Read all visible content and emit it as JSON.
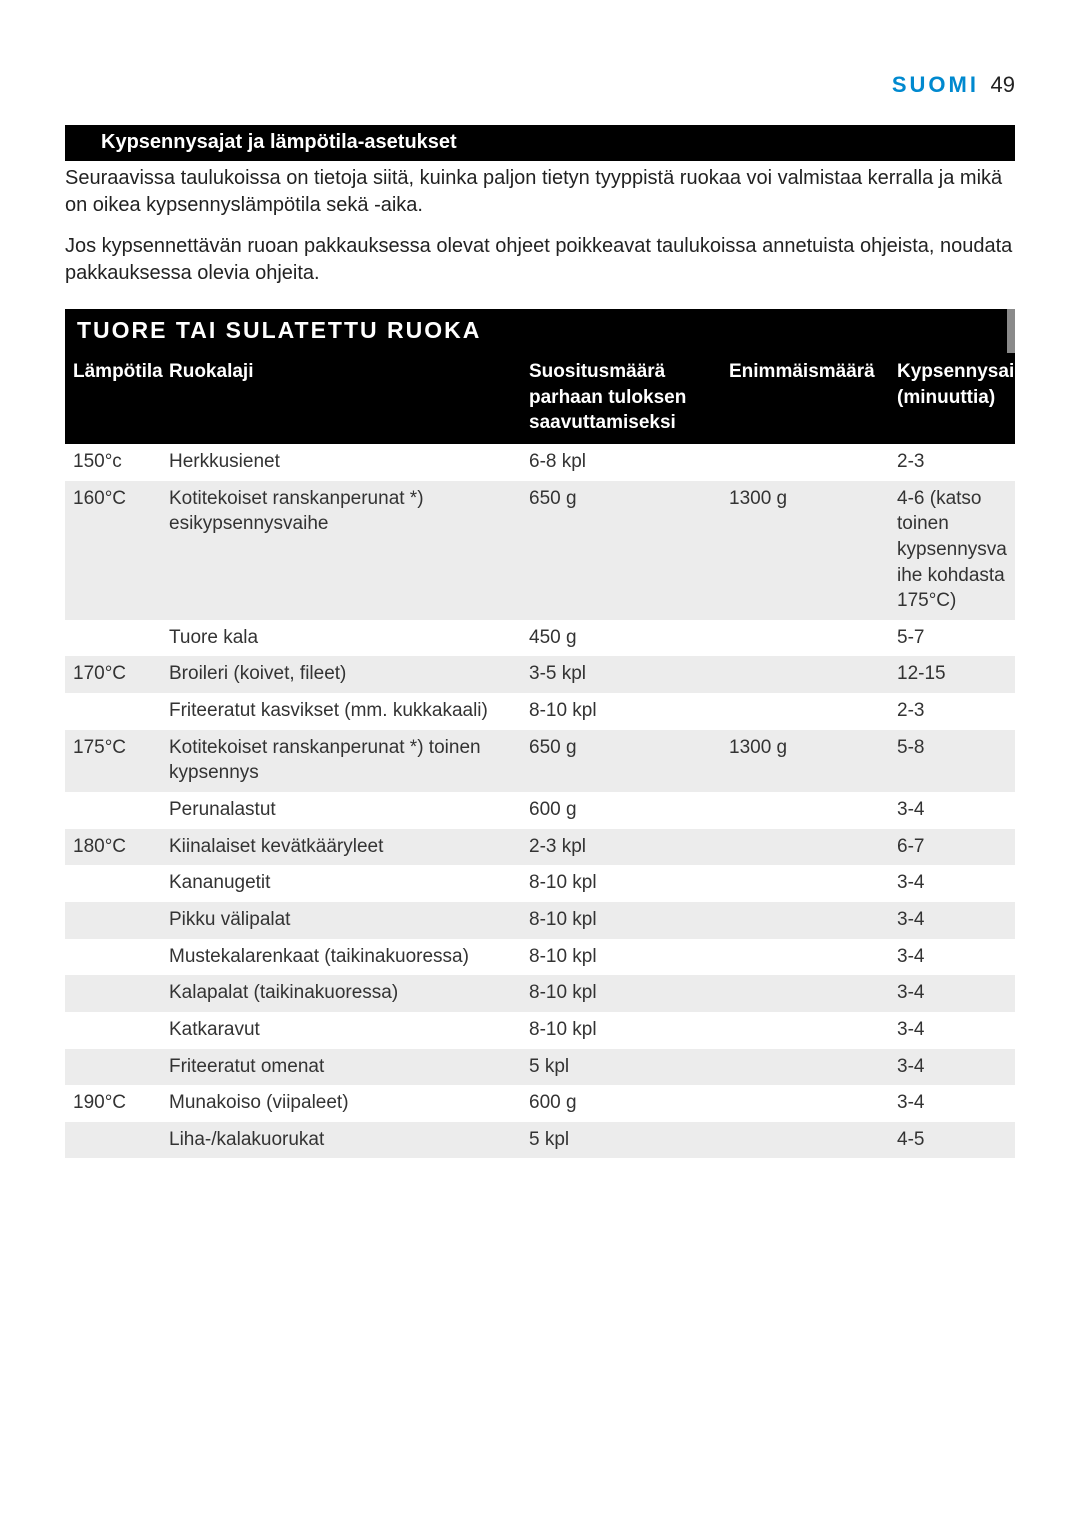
{
  "header": {
    "language": "SUOMI",
    "page_number": "49"
  },
  "section_bar": "Kypsennysajat ja lämpötila-asetukset",
  "intro": {
    "p1": "Seuraavissa taulukoissa on tietoja siitä, kuinka paljon tietyn tyyppistä ruokaa voi valmistaa kerralla ja mikä on oikea kypsennyslämpötila sekä -aika.",
    "p2": "Jos kypsennettävän ruoan pakkauksessa olevat ohjeet poikkeavat taulukoissa annetuista ohjeista, noudata pakkauksessa olevia ohjeita."
  },
  "table_title": "TUORE TAI SULATETTU RUOKA",
  "columns": {
    "temp": "Lämpötila",
    "food": "Ruokalaji",
    "rec": "Suositusmäärä parhaan tuloksen saavuttamiseksi",
    "max": "Enimmäismäärä",
    "time": "Kypsennysaika (minuuttia)"
  },
  "rows": [
    {
      "zebra": false,
      "temp": "150°c",
      "food": "Herkkusienet",
      "rec": "6-8 kpl",
      "max": "",
      "time": "2-3"
    },
    {
      "zebra": true,
      "temp": "160°C",
      "food": "Kotitekoiset ranskanperunat *) esikypsennysvaihe",
      "rec": "650 g",
      "max": "1300 g",
      "time": "4-6 (katso toinen kypsennysvaihe kohdasta 175°C)"
    },
    {
      "zebra": false,
      "temp": "",
      "food": "Tuore kala",
      "rec": "450 g",
      "max": "",
      "time": "5-7"
    },
    {
      "zebra": true,
      "temp": "170°C",
      "food": "Broileri (koivet, fileet)",
      "rec": "3-5 kpl",
      "max": "",
      "time": "12-15"
    },
    {
      "zebra": false,
      "temp": "",
      "food": "Friteeratut kasvikset (mm. kukkakaali)",
      "rec": "8-10 kpl",
      "max": "",
      "time": "2-3"
    },
    {
      "zebra": true,
      "temp": "175°C",
      "food": "Kotitekoiset ranskanperunat *) toinen kypsennys",
      "rec": "650 g",
      "max": "1300 g",
      "time": "5-8"
    },
    {
      "zebra": false,
      "temp": "",
      "food": "Perunalastut",
      "rec": "600 g",
      "max": "",
      "time": "3-4"
    },
    {
      "zebra": true,
      "temp": "180°C",
      "food": "Kiinalaiset kevätkääryleet",
      "rec": "2-3 kpl",
      "max": "",
      "time": "6-7"
    },
    {
      "zebra": false,
      "temp": "",
      "food": "Kananugetit",
      "rec": "8-10 kpl",
      "max": "",
      "time": "3-4"
    },
    {
      "zebra": true,
      "temp": "",
      "food": "Pikku välipalat",
      "rec": "8-10 kpl",
      "max": "",
      "time": "3-4"
    },
    {
      "zebra": false,
      "temp": "",
      "food": "Mustekalarenkaat (taikinakuoressa)",
      "rec": "8-10 kpl",
      "max": "",
      "time": "3-4"
    },
    {
      "zebra": true,
      "temp": "",
      "food": "Kalapalat (taikinakuoressa)",
      "rec": "8-10 kpl",
      "max": "",
      "time": "3-4"
    },
    {
      "zebra": false,
      "temp": "",
      "food": "Katkaravut",
      "rec": "8-10 kpl",
      "max": "",
      "time": "3-4"
    },
    {
      "zebra": true,
      "temp": "",
      "food": "Friteeratut omenat",
      "rec": "5 kpl",
      "max": "",
      "time": "3-4"
    },
    {
      "zebra": false,
      "temp": "190°C",
      "food": "Munakoiso (viipaleet)",
      "rec": "600 g",
      "max": "",
      "time": "3-4"
    },
    {
      "zebra": true,
      "temp": "",
      "food": "Liha-/kalakuorukat",
      "rec": "5 kpl",
      "max": "",
      "time": "4-5"
    }
  ],
  "colors": {
    "brand": "#0089cf",
    "bar_bg": "#000000",
    "bar_fg": "#ffffff",
    "zebra": "#ececec",
    "text": "#222222"
  }
}
